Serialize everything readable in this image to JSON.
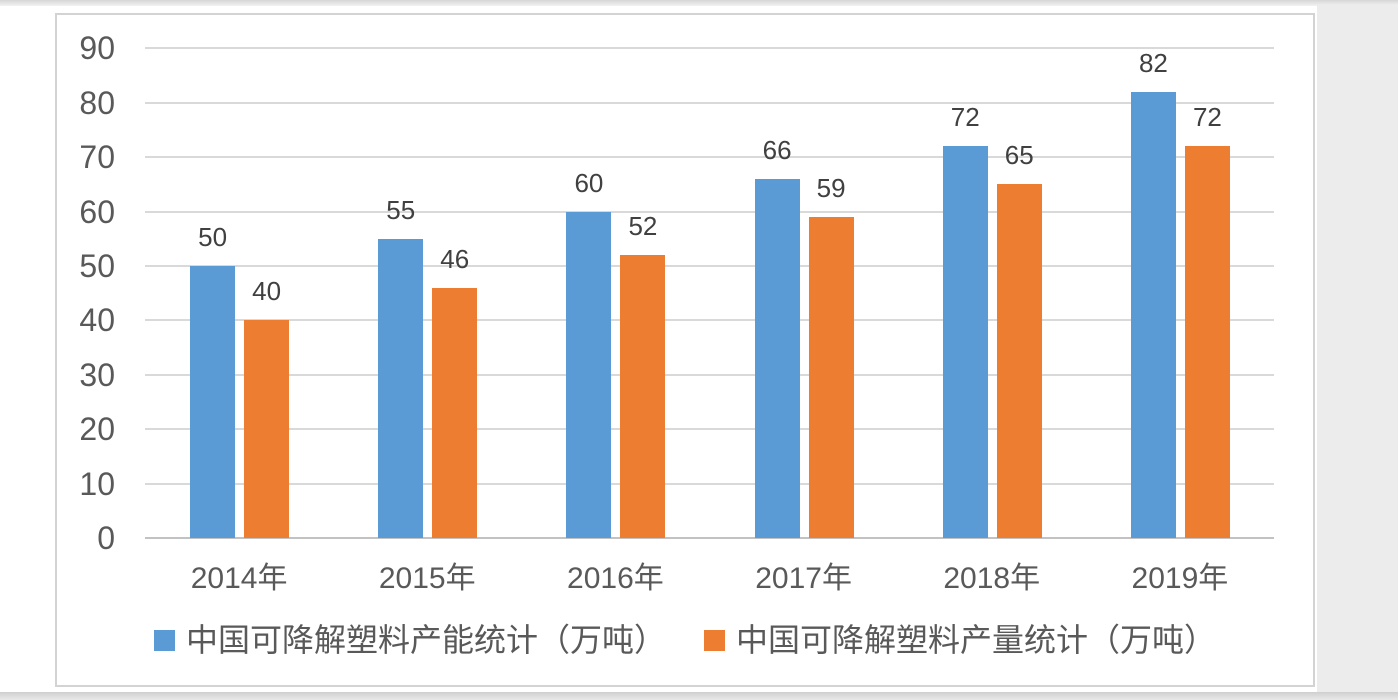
{
  "page": {
    "chrome": {
      "top_strip_color": "#D6D6D6",
      "bottom_strip_color": "#D4D4D4",
      "right_panel_color": "#ECECEC",
      "frame_border_color": "#D3D3D3",
      "frame_background": "#FFFFFF"
    }
  },
  "chart_data": {
    "type": "bar",
    "title": "",
    "categories": [
      "2014年",
      "2015年",
      "2016年",
      "2017年",
      "2018年",
      "2019年"
    ],
    "series": [
      {
        "name": "中国可降解塑料产能统计（万吨）",
        "color": "#5B9BD5",
        "values": [
          50,
          55,
          60,
          66,
          72,
          82
        ]
      },
      {
        "name": "中国可降解塑料产量统计（万吨）",
        "color": "#ED7D31",
        "values": [
          40,
          46,
          52,
          59,
          65,
          72
        ]
      }
    ],
    "ylim": [
      0,
      90
    ],
    "yticks": [
      0,
      10,
      20,
      30,
      40,
      50,
      60,
      70,
      80,
      90
    ],
    "grid": true,
    "data_labels": true,
    "legend_position": "bottom",
    "gridline_color": "#D9D9D9",
    "axis_line_color": "#C2C2C2",
    "axis_text_color": "#595959",
    "data_label_color": "#404040",
    "legend_text_color": "#595959"
  }
}
